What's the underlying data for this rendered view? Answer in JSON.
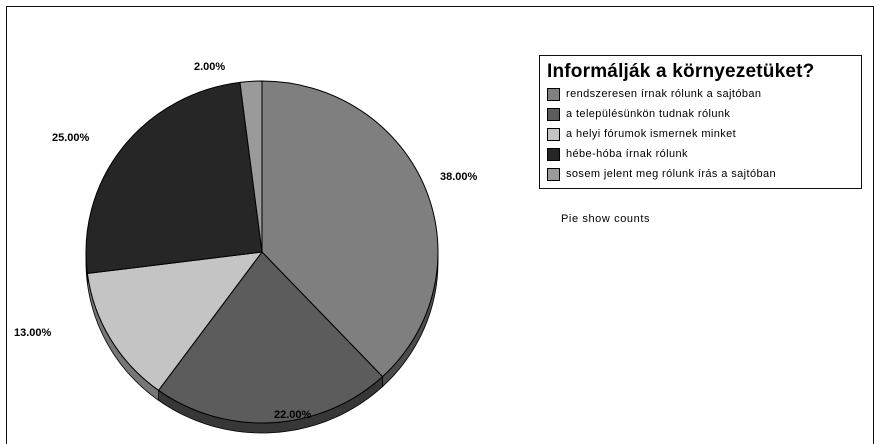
{
  "chart_data": {
    "type": "pie",
    "title": "Informálják a környezetüket?",
    "categories": [
      "rendszeresen írnak rólunk a sajtóban",
      "a településünkön tudnak rólunk",
      "a helyi fórumok ismernek minket",
      "hébe-hóba írnak rólunk",
      "sosem jelent meg rólunk írás a sajtóban"
    ],
    "values": [
      38,
      22,
      13,
      25,
      2
    ],
    "value_labels": [
      "38.00%",
      "22.00%",
      "13.00%",
      "25.00%",
      "2.00%"
    ],
    "colors": [
      "#7f7f7f",
      "#5c5c5c",
      "#c4c4c4",
      "#262626",
      "#9a9a9a"
    ],
    "legend_position": "right",
    "style": "3d"
  },
  "note": "Pie show counts"
}
